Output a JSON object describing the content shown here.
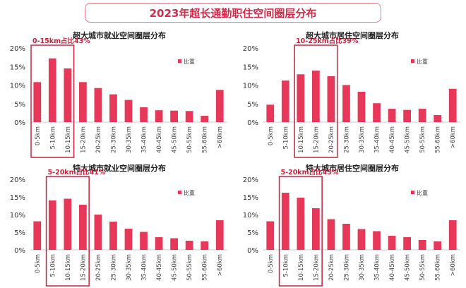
{
  "page": {
    "title": "2023年超长通勤职住空间圈层分布"
  },
  "chart_data": [
    {
      "type": "bar",
      "title": "超大城市就业空间圈层分布",
      "legend": "比重",
      "legend_position": "top-right",
      "categories": [
        "0-5km",
        "5-10km",
        "10-15km",
        "15-20km",
        "20-25km",
        "25-30km",
        "30-35km",
        "35-40km",
        "40-45km",
        "45-50km",
        "50-55km",
        "55-60km",
        ">60km"
      ],
      "values": [
        10.8,
        17.2,
        14.5,
        10.8,
        9.2,
        7.5,
        6.0,
        4.0,
        3.2,
        3.1,
        3.0,
        1.7,
        8.7
      ],
      "ylim": [
        0,
        20
      ],
      "yticks": [
        "0%",
        "5%",
        "10%",
        "15%",
        "20%"
      ],
      "annotation": "0-15km占比43%",
      "highlight_range": [
        0,
        2
      ]
    },
    {
      "type": "bar",
      "title": "超大城市居住空间圈层分布",
      "legend": "比重",
      "legend_position": "top-right",
      "categories": [
        "0-5km",
        "5-10km",
        "10-15km",
        "15-20km",
        "20-25km",
        "25-30km",
        "30-35km",
        "35-40km",
        "40-45km",
        "45-50km",
        "50-55km",
        "55-60km",
        ">60km"
      ],
      "values": [
        4.7,
        11.2,
        12.9,
        13.9,
        12.4,
        10.0,
        8.2,
        5.1,
        3.6,
        3.3,
        3.6,
        1.9,
        9.0
      ],
      "ylim": [
        0,
        20
      ],
      "yticks": [
        "0%",
        "5%",
        "10%",
        "15%",
        "20%"
      ],
      "annotation": "10-25km占比39%",
      "highlight_range": [
        2,
        4
      ]
    },
    {
      "type": "bar",
      "title": "特大城市就业空间圈层分布",
      "legend": "比重",
      "legend_position": "top-right",
      "categories": [
        "0-5km",
        "5-10km",
        "10-15km",
        "15-20km",
        "20-25km",
        "25-30km",
        "30-35km",
        "35-40km",
        "40-45km",
        "45-50km",
        "50-55km",
        "55-60km",
        ">60km"
      ],
      "values": [
        8.1,
        14.0,
        14.5,
        12.8,
        10.0,
        8.0,
        6.0,
        5.1,
        3.6,
        3.3,
        2.6,
        2.4,
        8.4
      ],
      "ylim": [
        0,
        20
      ],
      "yticks": [
        "0%",
        "5%",
        "10%",
        "15%",
        "20%"
      ],
      "annotation": "5-20km占比41%",
      "highlight_range": [
        1,
        3
      ]
    },
    {
      "type": "bar",
      "title": "特大城市居住空间圈层分布",
      "legend": "比重",
      "legend_position": "top-right",
      "categories": [
        "0-5km",
        "5-10km",
        "10-15km",
        "15-20km",
        "20-25km",
        "25-30km",
        "30-35km",
        "35-40km",
        "40-45km",
        "45-50km",
        "50-55km",
        "55-60km",
        ">60km"
      ],
      "values": [
        8.1,
        16.2,
        14.8,
        11.8,
        8.7,
        7.4,
        5.9,
        5.3,
        4.0,
        3.6,
        2.8,
        2.4,
        8.4
      ],
      "ylim": [
        0,
        20
      ],
      "yticks": [
        "0%",
        "5%",
        "10%",
        "15%",
        "20%"
      ],
      "annotation": "5-20km占比43%",
      "highlight_range": [
        1,
        3
      ]
    }
  ],
  "colors": {
    "bar": "#e8385a",
    "highlight": "#c8223e",
    "title": "#d42a4a"
  }
}
